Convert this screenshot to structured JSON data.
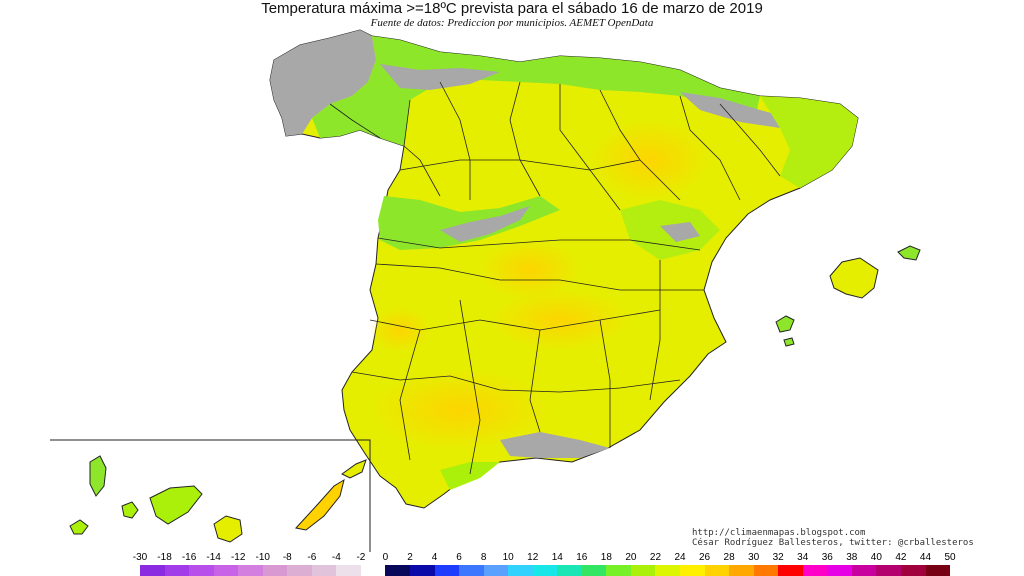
{
  "title": "Temperatura máxima >=18ºC prevista para el sábado 16 de marzo de 2019",
  "subtitle": "Fuente de datos: Prediccion por municipios. AEMET OpenData",
  "credits": {
    "blog": "http://climaenmapas.blogspot.com",
    "author": "César Rodríguez Ballesteros, twitter: @crballesteros"
  },
  "legend": {
    "labels": [
      "-30",
      "-18",
      "-16",
      "-14",
      "-12",
      "-10",
      "-8",
      "-6",
      "-4",
      "-2",
      "0",
      "2",
      "4",
      "6",
      "8",
      "10",
      "12",
      "14",
      "16",
      "18",
      "20",
      "22",
      "24",
      "26",
      "28",
      "30",
      "32",
      "34",
      "36",
      "38",
      "40",
      "42",
      "44",
      "50"
    ],
    "colors": [
      "#8a2be2",
      "#a23be8",
      "#b84fea",
      "#c862e6",
      "#d27fe0",
      "#d899d2",
      "#dcaed4",
      "#e2c3dc",
      "#eee0ea",
      "#ffffff",
      "#08085a",
      "#0a0aa8",
      "#1e3cff",
      "#3c78ff",
      "#5aa0ff",
      "#32d2ff",
      "#19e6e6",
      "#19e6b4",
      "#32e664",
      "#78f028",
      "#aaf00a",
      "#dcf500",
      "#fff000",
      "#ffd200",
      "#ffa800",
      "#ff7800",
      "#ff0000",
      "#ff00c8",
      "#e600e6",
      "#c800a0",
      "#b4006e",
      "#a0003c",
      "#780014"
    ]
  }
}
